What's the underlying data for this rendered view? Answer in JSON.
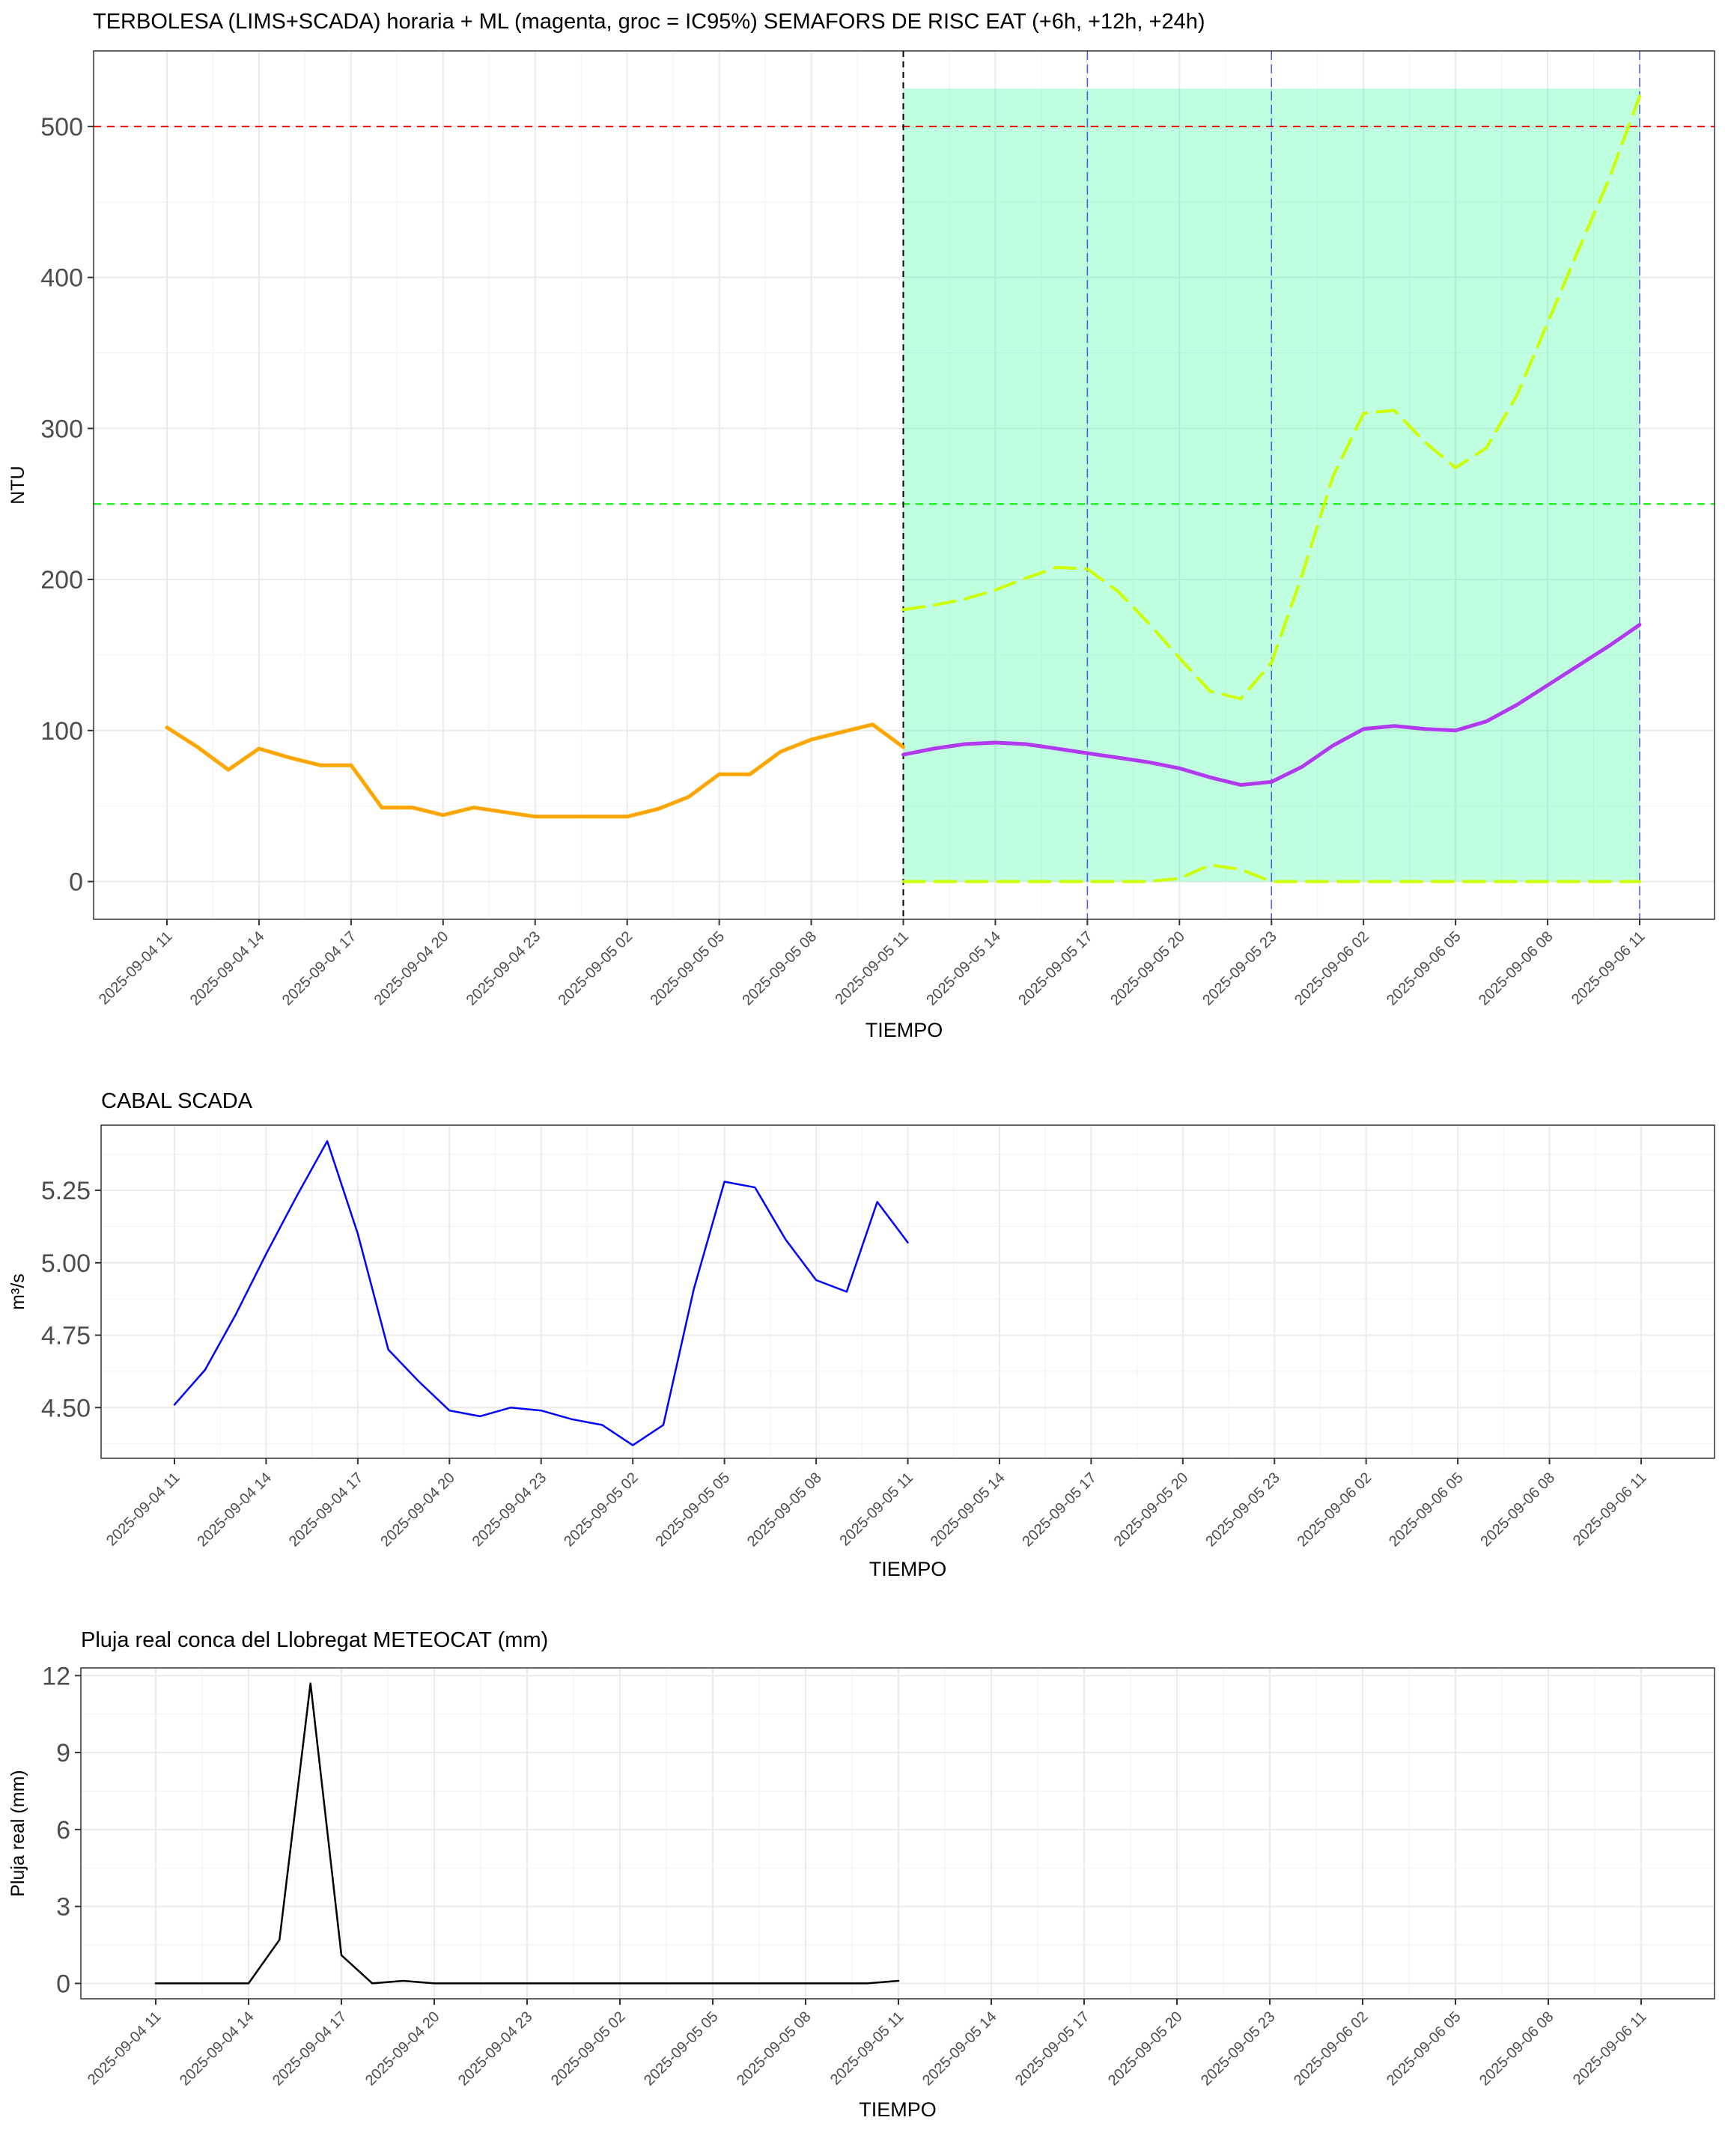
{
  "x_ticks": [
    "2025-09-04 11",
    "2025-09-04 14",
    "2025-09-04 17",
    "2025-09-04 20",
    "2025-09-04 23",
    "2025-09-05 02",
    "2025-09-05 05",
    "2025-09-05 08",
    "2025-09-05 11",
    "2025-09-05 14",
    "2025-09-05 17",
    "2025-09-05 20",
    "2025-09-05 23",
    "2025-09-06 02",
    "2025-09-06 05",
    "2025-09-06 08",
    "2025-09-06 11"
  ],
  "colors": {
    "observed": "#FFA500",
    "forecast": "#B23AEE",
    "ci": "#CCFF00",
    "band": "#00FF7F",
    "red_line": "#FF0000",
    "green_line": "#00EE00",
    "horizon_lines": "#3333FF",
    "flow": "#0000FF",
    "rain": "#000000"
  },
  "chart_data": [
    {
      "type": "line",
      "title": "TERBOLESA (LIMS+SCADA) horaria + ML (magenta, groc = IC95%) SEMAFORS DE RISC EAT (+6h, +12h, +24h)",
      "xlabel": "TIEMPO",
      "ylabel": "NTU",
      "x_unit": "hour",
      "ylim": [
        -25,
        550
      ],
      "yticks": [
        0,
        100,
        200,
        300,
        400,
        500
      ],
      "grid": true,
      "thresholds": [
        500,
        250
      ],
      "now": "2025-09-05 11",
      "horizons": [
        "2025-09-05 17",
        "2025-09-05 23",
        "2025-09-06 11"
      ],
      "risk_band": {
        "from": "2025-09-05 11",
        "to": "2025-09-06 11",
        "ymin": 0,
        "ymax": 525
      },
      "series": [
        {
          "role": "observed",
          "x": [
            "2025-09-04 11",
            "2025-09-04 12",
            "2025-09-04 13",
            "2025-09-04 14",
            "2025-09-04 15",
            "2025-09-04 16",
            "2025-09-04 17",
            "2025-09-04 18",
            "2025-09-04 19",
            "2025-09-04 20",
            "2025-09-04 21",
            "2025-09-04 22",
            "2025-09-04 23",
            "2025-09-05 00",
            "2025-09-05 01",
            "2025-09-05 02",
            "2025-09-05 03",
            "2025-09-05 04",
            "2025-09-05 05",
            "2025-09-05 06",
            "2025-09-05 07",
            "2025-09-05 08",
            "2025-09-05 09",
            "2025-09-05 10",
            "2025-09-05 11"
          ],
          "y": [
            102,
            89,
            74,
            88,
            82,
            77,
            77,
            49,
            49,
            44,
            49,
            46,
            43,
            43,
            43,
            43,
            48,
            56,
            71,
            71,
            86,
            94,
            99,
            104,
            89
          ]
        },
        {
          "role": "forecast",
          "x": [
            "2025-09-05 11",
            "2025-09-05 12",
            "2025-09-05 13",
            "2025-09-05 14",
            "2025-09-05 15",
            "2025-09-05 16",
            "2025-09-05 17",
            "2025-09-05 18",
            "2025-09-05 19",
            "2025-09-05 20",
            "2025-09-05 21",
            "2025-09-05 22",
            "2025-09-05 23",
            "2025-09-06 00",
            "2025-09-06 01",
            "2025-09-06 02",
            "2025-09-06 03",
            "2025-09-06 04",
            "2025-09-06 05",
            "2025-09-06 06",
            "2025-09-06 07",
            "2025-09-06 08",
            "2025-09-06 09",
            "2025-09-06 10",
            "2025-09-06 11"
          ],
          "y": [
            84,
            88,
            91,
            92,
            91,
            88,
            85,
            82,
            79,
            75,
            69,
            64,
            66,
            76,
            90,
            101,
            103,
            101,
            100,
            106,
            117,
            130,
            143,
            156,
            170
          ]
        },
        {
          "role": "ci_upper",
          "x": [
            "2025-09-05 11",
            "2025-09-05 12",
            "2025-09-05 13",
            "2025-09-05 14",
            "2025-09-05 15",
            "2025-09-05 16",
            "2025-09-05 17",
            "2025-09-05 18",
            "2025-09-05 19",
            "2025-09-05 20",
            "2025-09-05 21",
            "2025-09-05 22",
            "2025-09-05 23",
            "2025-09-06 00",
            "2025-09-06 01",
            "2025-09-06 02",
            "2025-09-06 03",
            "2025-09-06 04",
            "2025-09-06 05",
            "2025-09-06 06",
            "2025-09-06 07",
            "2025-09-06 08",
            "2025-09-06 09",
            "2025-09-06 10",
            "2025-09-06 11"
          ],
          "y": [
            180,
            183,
            187,
            193,
            201,
            208,
            207,
            192,
            171,
            148,
            126,
            121,
            145,
            203,
            268,
            310,
            312,
            291,
            274,
            287,
            322,
            370,
            418,
            465,
            520
          ]
        },
        {
          "role": "ci_lower",
          "x": [
            "2025-09-05 11",
            "2025-09-05 12",
            "2025-09-05 13",
            "2025-09-05 14",
            "2025-09-05 15",
            "2025-09-05 16",
            "2025-09-05 17",
            "2025-09-05 18",
            "2025-09-05 19",
            "2025-09-05 20",
            "2025-09-05 21",
            "2025-09-05 22",
            "2025-09-05 23",
            "2025-09-06 00",
            "2025-09-06 01",
            "2025-09-06 02",
            "2025-09-06 03",
            "2025-09-06 04",
            "2025-09-06 05",
            "2025-09-06 06",
            "2025-09-06 07",
            "2025-09-06 08",
            "2025-09-06 09",
            "2025-09-06 10",
            "2025-09-06 11"
          ],
          "y": [
            0,
            0,
            0,
            0,
            0,
            0,
            0,
            0,
            0,
            2,
            11,
            8,
            0,
            0,
            0,
            0,
            0,
            0,
            0,
            0,
            0,
            0,
            0,
            0,
            0
          ]
        }
      ]
    },
    {
      "type": "line",
      "title": "CABAL SCADA",
      "xlabel": "TIEMPO",
      "ylabel": "m³/s",
      "x_unit": "hour",
      "ylim": [
        4.325,
        5.475
      ],
      "yticks": [
        4.5,
        4.75,
        5.0,
        5.25
      ],
      "ytick_labels": [
        "4.50",
        "4.75",
        "5.00",
        "5.25"
      ],
      "grid": true,
      "series": [
        {
          "role": "flow",
          "x": [
            "2025-09-04 11",
            "2025-09-04 12",
            "2025-09-04 13",
            "2025-09-04 14",
            "2025-09-04 15",
            "2025-09-04 16",
            "2025-09-04 17",
            "2025-09-04 18",
            "2025-09-04 19",
            "2025-09-04 20",
            "2025-09-04 21",
            "2025-09-04 22",
            "2025-09-04 23",
            "2025-09-05 00",
            "2025-09-05 01",
            "2025-09-05 02",
            "2025-09-05 03",
            "2025-09-05 04",
            "2025-09-05 05",
            "2025-09-05 06",
            "2025-09-05 07",
            "2025-09-05 08",
            "2025-09-05 09",
            "2025-09-05 10",
            "2025-09-05 11"
          ],
          "y": [
            4.51,
            4.63,
            4.82,
            5.03,
            5.23,
            5.42,
            5.1,
            4.7,
            4.59,
            4.49,
            4.47,
            4.5,
            4.49,
            4.46,
            4.44,
            4.37,
            4.44,
            4.91,
            5.28,
            5.26,
            5.08,
            4.94,
            4.9,
            5.21,
            5.07
          ]
        }
      ]
    },
    {
      "type": "line",
      "title": "Pluja real conca del Llobregat METEOCAT (mm)",
      "xlabel": "TIEMPO",
      "ylabel": "Pluja real (mm)",
      "x_unit": "hour",
      "ylim": [
        -0.6,
        12.3
      ],
      "yticks": [
        0,
        3,
        6,
        9,
        12
      ],
      "grid": true,
      "series": [
        {
          "role": "rain",
          "x": [
            "2025-09-04 11",
            "2025-09-04 12",
            "2025-09-04 13",
            "2025-09-04 14",
            "2025-09-04 15",
            "2025-09-04 16",
            "2025-09-04 17",
            "2025-09-04 18",
            "2025-09-04 19",
            "2025-09-04 20",
            "2025-09-04 21",
            "2025-09-04 22",
            "2025-09-04 23",
            "2025-09-05 00",
            "2025-09-05 01",
            "2025-09-05 02",
            "2025-09-05 03",
            "2025-09-05 04",
            "2025-09-05 05",
            "2025-09-05 06",
            "2025-09-05 07",
            "2025-09-05 08",
            "2025-09-05 09",
            "2025-09-05 10",
            "2025-09-05 11"
          ],
          "y": [
            0,
            0,
            0,
            0,
            1.7,
            11.7,
            1.1,
            0,
            0.1,
            0,
            0,
            0,
            0,
            0,
            0,
            0,
            0,
            0,
            0,
            0,
            0,
            0,
            0,
            0,
            0.1
          ]
        }
      ]
    }
  ]
}
